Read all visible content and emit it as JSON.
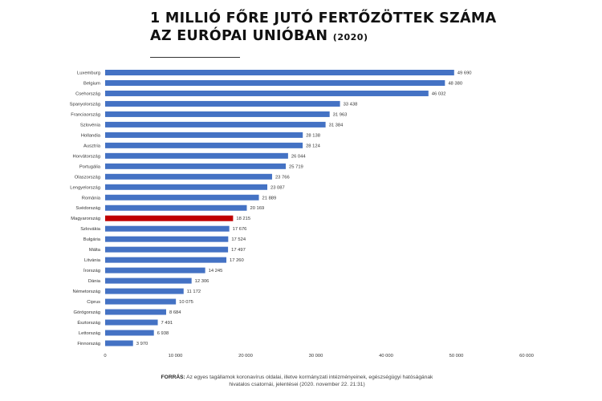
{
  "title": {
    "line1": "1 MILLIÓ FŐRE JUTÓ FERTŐZÖTTEK SZÁMA",
    "line2": "AZ EURÓPAI UNIÓBAN",
    "year": "(2020)"
  },
  "source": {
    "label": "FORRÁS:",
    "text": "Az egyes tagállamok koronavírus oldalai, illetve kormányzati intézményeinek, egészségügyi hatóságának hivatalos csatornái, jelentései (2020. november 22. 21:31)"
  },
  "chart_data": {
    "type": "bar",
    "orientation": "horizontal",
    "categories": [
      "Luxemburg",
      "Belgium",
      "Csehország",
      "Spanyolország",
      "Franciaország",
      "Szlovénia",
      "Hollandia",
      "Ausztria",
      "Horvátország",
      "Portugália",
      "Olaszország",
      "Lengyelország",
      "Románia",
      "Svédország",
      "Magyarország",
      "Szlovákia",
      "Bulgária",
      "Málta",
      "Litvánia",
      "Írország",
      "Dánia",
      "Németország",
      "Ciprus",
      "Görögország",
      "Észtország",
      "Lettország",
      "Finnország"
    ],
    "values": [
      49690,
      48380,
      46032,
      33438,
      31963,
      31384,
      28138,
      28124,
      26044,
      25719,
      23766,
      23087,
      21889,
      20169,
      18215,
      17676,
      17524,
      17497,
      17260,
      14245,
      12306,
      11172,
      10075,
      8684,
      7491,
      6938,
      3970
    ],
    "value_labels": [
      "49 690",
      "48 380",
      "46 032",
      "33 438",
      "31 963",
      "31 384",
      "28 138",
      "28 124",
      "26 044",
      "25 719",
      "23 766",
      "23 087",
      "21 889",
      "20 169",
      "18 215",
      "17 676",
      "17 524",
      "17 497",
      "17 260",
      "14 245",
      "12 306",
      "11 172",
      "10 075",
      "8 684",
      "7 491",
      "6 938",
      "3 970"
    ],
    "xlim": [
      0,
      60000
    ],
    "xticks": [
      0,
      10000,
      20000,
      30000,
      40000,
      50000,
      60000
    ],
    "xtick_labels": [
      "0",
      "10 000",
      "20 000",
      "30 000",
      "40 000",
      "50 000",
      "60 000"
    ],
    "highlight_category": "Magyarország",
    "colors": {
      "bar": "#4472c4",
      "highlight": "#c00000"
    },
    "grid": false
  }
}
